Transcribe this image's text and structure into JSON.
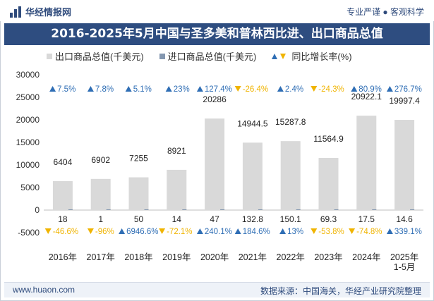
{
  "header": {
    "brand": "华经情报网",
    "tagline": "专业严谨 ● 客观科学"
  },
  "footer": {
    "website": "www.huaon.com",
    "source": "数据来源：中国海关，华经产业研究院整理"
  },
  "chart_data": {
    "type": "bar",
    "title": "2016-2025年5月中国与圣多美和普林西比进、出口商品总值",
    "categories": [
      "2016年",
      "2017年",
      "2018年",
      "2019年",
      "2020年",
      "2021年",
      "2022年",
      "2023年",
      "2024年",
      "2025年\n1-5月"
    ],
    "ylim": [
      -5000,
      30000
    ],
    "yticks": [
      -5000,
      0,
      5000,
      10000,
      15000,
      20000,
      25000,
      30000
    ],
    "legend": {
      "export": "出口商品总值(千美元)",
      "import": "进口商品总值(千美元)",
      "growth": "同比增长率(%)"
    },
    "series": [
      {
        "name": "出口商品总值(千美元)",
        "values": [
          6404,
          6902,
          7255,
          8921,
          20286,
          14944.5,
          15287.8,
          11564.9,
          20922.1,
          19997.4
        ],
        "labels": [
          "6404",
          "6902",
          "7255",
          "8921",
          "20286",
          "14944.5",
          "15287.8",
          "11564.9",
          "20922.1",
          "19997.4"
        ],
        "growth": [
          "7.5%",
          "7.8%",
          "5.1%",
          "23%",
          "127.4%",
          "-26.4%",
          "2.4%",
          "-24.3%",
          "80.9%",
          "276.7%"
        ],
        "growth_dir": [
          "up",
          "up",
          "up",
          "up",
          "up",
          "down",
          "up",
          "down",
          "up",
          "up"
        ]
      },
      {
        "name": "进口商品总值(千美元)",
        "values": [
          18,
          1,
          50,
          14,
          47,
          132.8,
          150.1,
          69.3,
          17.5,
          14.6
        ],
        "labels": [
          "18",
          "1",
          "50",
          "14",
          "47",
          "132.8",
          "150.1",
          "69.3",
          "17.5",
          "14.6"
        ],
        "growth": [
          "-46.6%",
          "-96%",
          "6946.6%",
          "-72.1%",
          "240.1%",
          "184.6%",
          "13%",
          "-53.8%",
          "-74.8%",
          "339.1%"
        ],
        "growth_dir": [
          "down",
          "down",
          "up",
          "down",
          "up",
          "up",
          "up",
          "down",
          "down",
          "up"
        ]
      }
    ],
    "colors": {
      "export_bar": "#d9d9d9",
      "import_bar": "#8497b0",
      "up": "#2f6eb5",
      "down": "#f0b400"
    }
  }
}
